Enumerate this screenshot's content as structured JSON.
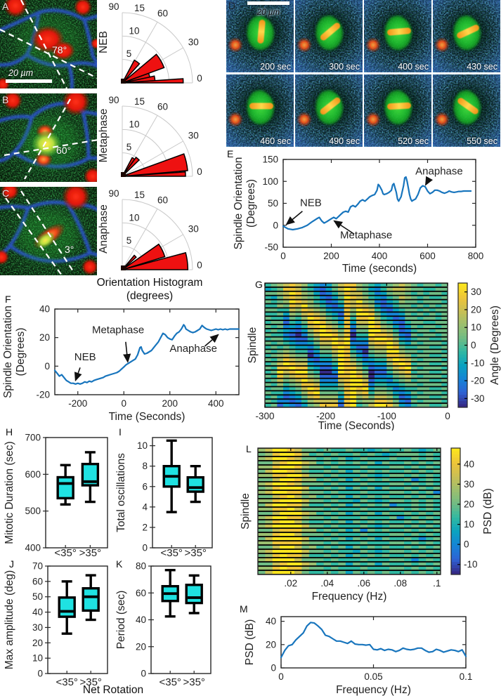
{
  "colors": {
    "accent_blue": "#1875bd",
    "box_cyan": "#1fe2e2",
    "rose_red": "#ee1111",
    "axis": "#262626",
    "parula": [
      "#352a87",
      "#2e63d5",
      "#1584d6",
      "#0aa2c0",
      "#30b8a2",
      "#6fbc85",
      "#9bbf6f",
      "#c8bf55",
      "#edc43a",
      "#fbe51e"
    ]
  },
  "micrographs": {
    "A": {
      "letter": "A",
      "angle": "78°",
      "scalebar": "20 µm"
    },
    "B": {
      "letter": "B",
      "angle": "60°"
    },
    "C": {
      "letter": "C",
      "angle": "3°"
    },
    "D": {
      "letter": "D",
      "scalebar": "20 µm",
      "times": [
        "200 sec",
        "300 sec",
        "400 sec",
        "430 sec",
        "460 sec",
        "490 sec",
        "520 sec",
        "550 sec"
      ]
    }
  },
  "caption": {
    "line1": "Orientation Histogram",
    "line2": "(degrees)"
  },
  "net_rotation": "Net Rotation",
  "chart_data": [
    {
      "id": "rose_neb",
      "type": "rose",
      "side_label": "NEB",
      "angular_ticks": [
        0,
        30,
        60,
        90
      ],
      "radial_ticks": [
        5,
        10,
        15
      ],
      "rmax": 15,
      "wedges": [
        [
          0,
          4,
          13
        ],
        [
          4,
          12,
          7
        ],
        [
          12,
          20,
          6
        ],
        [
          20,
          40,
          9.5
        ],
        [
          48,
          62,
          5.5
        ]
      ]
    },
    {
      "id": "rose_metaphase",
      "type": "rose",
      "side_label": "Metaphase",
      "angular_ticks": [
        0,
        30,
        60,
        90
      ],
      "radial_ticks": [
        5,
        10,
        15
      ],
      "rmax": 15,
      "wedges": [
        [
          0,
          4,
          13.5
        ],
        [
          5,
          20,
          14
        ],
        [
          44,
          54,
          5
        ],
        [
          54,
          62,
          4.5
        ]
      ]
    },
    {
      "id": "rose_anaphase",
      "type": "rose",
      "side_label": "Anaphase",
      "angular_ticks": [
        0,
        30,
        60,
        90
      ],
      "radial_ticks": [
        5,
        10,
        15
      ],
      "rmax": 15,
      "wedges": [
        [
          0,
          15,
          14
        ],
        [
          17,
          35,
          9.5
        ],
        [
          42,
          50,
          4
        ]
      ]
    },
    {
      "id": "E",
      "letter": "E",
      "type": "line",
      "xlabel": "Time (seconds)",
      "ylabel": [
        "Spindle Orientation",
        "(Degrees)"
      ],
      "xlim": [
        0,
        800
      ],
      "ylim": [
        -50,
        150
      ],
      "xticks": [
        0,
        200,
        400,
        600,
        800
      ],
      "yticks": [
        -50,
        0,
        50,
        100,
        150
      ],
      "x": [
        0,
        20,
        40,
        60,
        80,
        100,
        120,
        140,
        150,
        160,
        170,
        180,
        200,
        210,
        220,
        230,
        240,
        250,
        260,
        270,
        280,
        290,
        300,
        310,
        320,
        330,
        340,
        350,
        360,
        370,
        380,
        390,
        395,
        400,
        410,
        415,
        420,
        430,
        440,
        450,
        455,
        460,
        470,
        475,
        480,
        490,
        500,
        505,
        510,
        515,
        520,
        525,
        530,
        535,
        540,
        550,
        560,
        570,
        580,
        590,
        600,
        610,
        620,
        630,
        640,
        650,
        660,
        670,
        680,
        690,
        700,
        710,
        720,
        730,
        740,
        750,
        760,
        770,
        780
      ],
      "y": [
        -2,
        -8,
        -10,
        -8,
        -5,
        0,
        8,
        15,
        18,
        10,
        5,
        8,
        15,
        18,
        15,
        20,
        25,
        30,
        32,
        30,
        42,
        45,
        42,
        48,
        55,
        58,
        55,
        60,
        65,
        68,
        70,
        80,
        93,
        90,
        80,
        72,
        70,
        72,
        75,
        80,
        92,
        95,
        75,
        60,
        55,
        65,
        90,
        108,
        110,
        100,
        85,
        70,
        60,
        55,
        57,
        60,
        70,
        85,
        90,
        88,
        78,
        72,
        75,
        80,
        80,
        78,
        75,
        73,
        75,
        78,
        76,
        75,
        76,
        77,
        77,
        78,
        78,
        78,
        78
      ],
      "annotations": [
        {
          "text": "NEB",
          "tx": 115,
          "ty": 44,
          "arrow": [
            80,
            32,
            14,
            2
          ]
        },
        {
          "text": "Metaphase",
          "tx": 345,
          "ty": -30,
          "arrow": [
            295,
            -20,
            212,
            10
          ]
        },
        {
          "text": "Anaphase",
          "tx": 648,
          "ty": 116,
          "arrow": [
            606,
            106,
            592,
            92
          ]
        }
      ]
    },
    {
      "id": "F",
      "letter": "F",
      "type": "line",
      "xlabel": "Time (Seconds)",
      "ylabel": [
        "Spindle Orientation",
        "(Degrees)"
      ],
      "xlim": [
        -300,
        500
      ],
      "ylim": [
        -20,
        40
      ],
      "xticks": [
        -200,
        0,
        200,
        400
      ],
      "yticks": [
        -20,
        0,
        20,
        40
      ],
      "x": [
        -300,
        -290,
        -280,
        -270,
        -260,
        -250,
        -240,
        -230,
        -220,
        -210,
        -200,
        -190,
        -180,
        -170,
        -160,
        -150,
        -140,
        -130,
        -120,
        -110,
        -100,
        -90,
        -80,
        -70,
        -60,
        -50,
        -40,
        -30,
        -20,
        -10,
        0,
        10,
        20,
        30,
        40,
        50,
        60,
        70,
        75,
        80,
        90,
        100,
        110,
        120,
        130,
        140,
        150,
        160,
        170,
        180,
        190,
        200,
        210,
        220,
        230,
        240,
        250,
        260,
        265,
        270,
        280,
        290,
        300,
        310,
        320,
        330,
        340,
        350,
        360,
        370,
        380,
        390,
        400,
        410,
        420,
        430,
        440,
        450,
        460,
        470,
        480,
        490,
        500
      ],
      "y": [
        -3,
        -5,
        -7,
        -6,
        -8,
        -10,
        -11,
        -12,
        -12,
        -12.5,
        -12,
        -12.5,
        -12,
        -11,
        -11.5,
        -10.5,
        -11,
        -10,
        -9.5,
        -9,
        -8.5,
        -8,
        -7,
        -6.5,
        -6,
        -5.5,
        -5,
        -4.5,
        -3.5,
        -2,
        -0.5,
        1,
        2,
        3,
        4,
        5,
        8,
        13,
        13.5,
        11,
        8.5,
        9,
        10,
        11,
        13,
        15,
        17,
        20,
        23,
        22,
        20,
        19,
        18.5,
        21,
        23,
        24,
        26,
        29,
        28,
        26,
        25,
        24,
        23.5,
        24,
        25,
        26,
        28.5,
        27,
        26,
        25.5,
        25,
        25.5,
        26,
        25.5,
        26,
        25.5,
        26,
        25.5,
        26,
        26,
        26,
        26,
        26
      ],
      "annotations": [
        {
          "text": "NEB",
          "tx": -168,
          "ty": 4,
          "arrow": [
            -190,
            -1,
            -210,
            -10
          ]
        },
        {
          "text": "Metaphase",
          "tx": -25,
          "ty": 23,
          "arrow": [
            8,
            17,
            17,
            3
          ]
        },
        {
          "text": "Anaphase",
          "tx": 302,
          "ty": 10,
          "arrow": [
            352,
            14,
            410,
            22
          ]
        }
      ]
    },
    {
      "id": "G",
      "letter": "G",
      "type": "heatmap",
      "ylabel": "Spindle",
      "xlabel": "Time (Seconds)",
      "xlim": [
        -300,
        0
      ],
      "xticks": [
        -300,
        -200,
        -100,
        0
      ],
      "colorbar": {
        "label": "Angle (Degrees)",
        "ticks": [
          30,
          20,
          10,
          0,
          -10,
          -20,
          -30
        ],
        "range": [
          -35,
          35
        ]
      },
      "rows": [
        "456787643235788654345676545545",
        "345887542135798653246776554455",
        "556798653124687754235665454554",
        "435787654213598764324576545445",
        "545698764312487965213465545554",
        "446587965421387876312455454545",
        "554476876532286987421345545455",
        "445365787643185998532235454545",
        "544254698754284889643125545545",
        "455143589865383779754214554455",
        "545232478976482669865313545545",
        "454321368987581559976412455455",
        "544210257998680449887521545545",
        "455321146889791338998632455445",
        "545432235779892227889743545554",
        "454543324668983116779854455445",
        "545654413557984205669965545554",
        "456765502446985314558876455445",
        "546876621335986423447987545554",
        "457987732224987532336898455445",
        "548898843113988641225789545554",
        "459789954002989750114678455445",
        "548678865111889860223567545554",
        "457567976222789971332456455445",
        "546456887333689982443345545554",
        "455345798444589893554234455445",
        "544234689555489784665323545554",
        "453123578666389675776412455445",
        "542212467777289566887521545554",
        "451321356888189457998632455445"
      ]
    },
    {
      "id": "H",
      "letter": "H",
      "type": "box",
      "ylabel": "Mitotic Duration (sec)",
      "ylim": [
        400,
        700
      ],
      "yticks": [
        400,
        500,
        600,
        700
      ],
      "categories": [
        "<35°",
        ">35°"
      ],
      "boxes": [
        [
          518,
          535,
          575,
          592,
          625
        ],
        [
          525,
          570,
          580,
          628,
          660
        ]
      ]
    },
    {
      "id": "I",
      "letter": "I",
      "type": "box",
      "ylabel": "Total oscillations",
      "ylim": [
        0,
        10.8
      ],
      "yticks": [
        0,
        2,
        4,
        6,
        8,
        10
      ],
      "categories": [
        "<35°",
        ">35°"
      ],
      "boxes": [
        [
          3.5,
          6,
          7,
          8,
          10.5
        ],
        [
          4.5,
          5.5,
          5.9,
          6.9,
          8
        ]
      ]
    },
    {
      "id": "J",
      "letter": "J",
      "type": "box",
      "ylabel": "Max amplitude (deg)",
      "ylim": [
        0,
        70
      ],
      "yticks": [
        0,
        10,
        20,
        30,
        40,
        50,
        60,
        70
      ],
      "categories": [
        "<35°",
        ">35°"
      ],
      "boxes": [
        [
          26,
          37,
          40.5,
          49.5,
          60
        ],
        [
          35,
          41,
          50,
          55.5,
          64
        ]
      ]
    },
    {
      "id": "K",
      "letter": "K",
      "type": "box",
      "ylabel": "Period (sec)",
      "ylim": [
        0,
        80
      ],
      "yticks": [
        0,
        20,
        40,
        60,
        80
      ],
      "categories": [
        "<35°",
        ">35°"
      ],
      "boxes": [
        [
          42.5,
          54,
          59.5,
          65,
          77
        ],
        [
          45,
          52.5,
          56.5,
          66,
          73
        ]
      ]
    },
    {
      "id": "L",
      "letter": "L",
      "type": "heatmap",
      "ylabel": "Spindle",
      "xlabel": "Frequency (Hz)",
      "xlim": [
        0.002,
        0.102
      ],
      "xticks": [
        0.02,
        0.04,
        0.06,
        0.08,
        0.1
      ],
      "xtick_labels": [
        ".02",
        ".04",
        ".06",
        ".08",
        ".1"
      ],
      "colorbar": {
        "label": "PSD (dB)",
        "ticks": [
          40,
          30,
          20,
          10,
          0,
          -10
        ],
        "range": [
          -15,
          48
        ]
      },
      "rows": [
        "6799875545445443454454345",
        "5689986454544545434555454",
        "6799875545453454445445454",
        "5578997645454545354454545",
        "6689986554544454445545454",
        "5799875445453545454454545",
        "6688997554544454345545454",
        "5579986645453545454452454",
        "6799875554544454445545454",
        "5689997445453545354454545",
        "6799886554544454445545452",
        "5578975645453545454454545",
        "6689997554544354345545454",
        "5799886445453545452445454",
        "6688975554544454445545454",
        "5579997645453545354454545",
        "6799886554544454445245454",
        "5689975445453545454454545",
        "6799997554544454345545454",
        "5578886645453525454454545",
        "6689975554544454445545454",
        "5799997445453545354454245",
        "6688886554544454445545454",
        "5579975645453545454454545",
        "6799997554544354345545454",
        "5689886445453545454454545",
        "6799975554544454445542454",
        "5578997645453545354454545",
        "6689886554544454445545454",
        "5799975445453545454454545"
      ]
    },
    {
      "id": "M",
      "letter": "M",
      "type": "line",
      "xlabel": "Frequency (Hz)",
      "ylabel": [
        "PSD (dB)"
      ],
      "xlim": [
        0,
        0.1
      ],
      "ylim": [
        0,
        44
      ],
      "xticks": [
        0,
        0.05,
        0.1
      ],
      "xtick_labels": [
        "0",
        "0.05",
        "0.1"
      ],
      "yticks": [
        0,
        20,
        40
      ],
      "x": [
        0,
        0.002,
        0.004,
        0.006,
        0.008,
        0.01,
        0.012,
        0.014,
        0.016,
        0.018,
        0.02,
        0.022,
        0.024,
        0.026,
        0.028,
        0.03,
        0.032,
        0.034,
        0.036,
        0.038,
        0.04,
        0.042,
        0.044,
        0.046,
        0.048,
        0.05,
        0.052,
        0.054,
        0.056,
        0.058,
        0.06,
        0.062,
        0.064,
        0.066,
        0.068,
        0.07,
        0.072,
        0.074,
        0.076,
        0.078,
        0.08,
        0.082,
        0.084,
        0.086,
        0.088,
        0.09,
        0.092,
        0.094,
        0.096,
        0.098,
        0.1
      ],
      "y": [
        9,
        15,
        19,
        20,
        24,
        27,
        30,
        36,
        39,
        38.5,
        36,
        33,
        28,
        27,
        25,
        23,
        23,
        22,
        21,
        23,
        20.5,
        20,
        20,
        19.5,
        20,
        16,
        15.5,
        16.5,
        15,
        16,
        15.5,
        14,
        15,
        17,
        16,
        15.5,
        16,
        17,
        17,
        15,
        13.5,
        14,
        16,
        15,
        13.5,
        14.5,
        15.5,
        15,
        14,
        15.5,
        10
      ],
      "annotations": []
    }
  ]
}
